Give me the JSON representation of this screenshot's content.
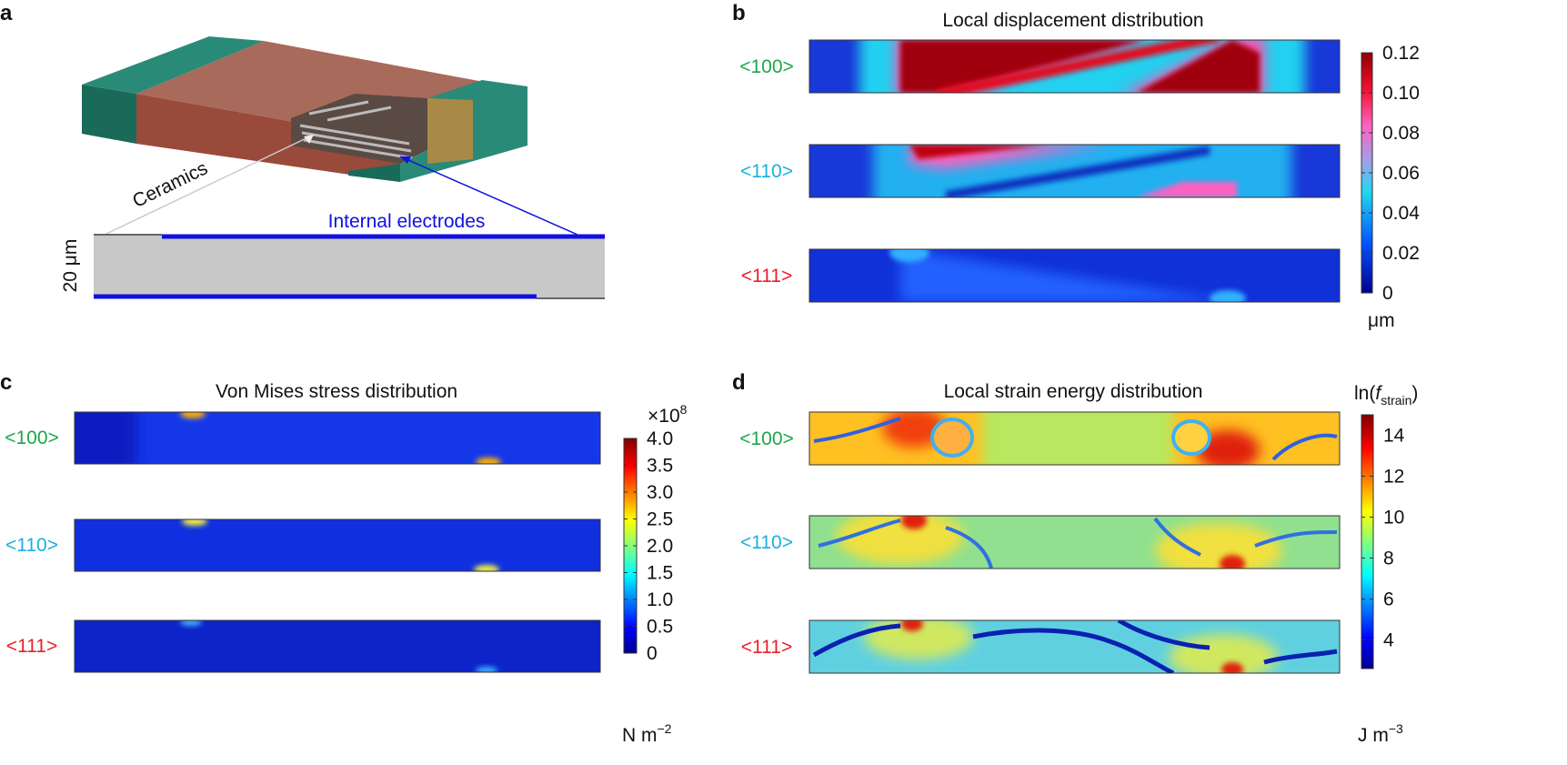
{
  "panels": [
    {
      "label": "a",
      "annotations": {
        "ceramics": "Ceramics",
        "electrodes": "Internal electrodes",
        "thickness": "20 μm"
      }
    },
    {
      "label": "b",
      "title": "Local displacement distribution",
      "rows": [
        "<100>",
        "<110>",
        "<111>"
      ],
      "colorbar": {
        "lim": [
          0,
          0.12
        ],
        "ticks": [
          0,
          0.02,
          0.04,
          0.06,
          0.08,
          {
            "value": 0.1,
            "label": "0.10"
          },
          0.12
        ],
        "unit": "μm"
      }
    },
    {
      "label": "c",
      "title": "Von Mises stress distribution",
      "rows": [
        "<100>",
        "<110>",
        "<111>"
      ],
      "colorbar": {
        "lim": [
          0,
          4
        ],
        "ticks": [
          0,
          0.5,
          {
            "value": 1,
            "label": "1.0"
          },
          1.5,
          {
            "value": 2,
            "label": "2.0"
          },
          2.5,
          {
            "value": 3,
            "label": "3.0"
          },
          3.5,
          {
            "value": 4,
            "label": "4.0"
          }
        ],
        "multiplier": {
          "base": "×10",
          "exponent": "8"
        },
        "unit": {
          "base": "N m",
          "exponent": "−2"
        }
      }
    },
    {
      "label": "d",
      "title": "Local strain energy distribution",
      "rows": [
        "<100>",
        "<110>",
        "<111>"
      ],
      "colorbar": {
        "lim": [
          2.6,
          15
        ],
        "ticks": [
          4,
          6,
          8,
          10,
          12,
          14
        ],
        "heading": {
          "base": "ln(",
          "italic": "f",
          "subscript": "strain",
          "close": ")"
        },
        "unit": {
          "base": "J m",
          "exponent": "−3"
        }
      }
    }
  ]
}
